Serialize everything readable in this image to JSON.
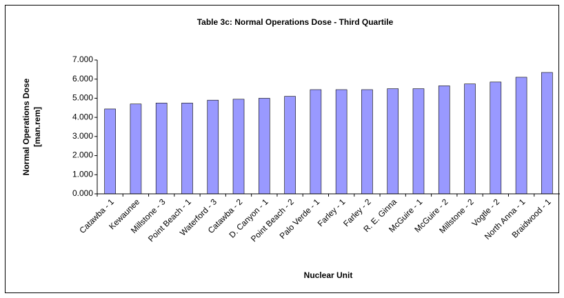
{
  "chart_data": {
    "type": "bar",
    "title": "Table 3c: Normal Operations Dose - Third Quartile",
    "y_label": [
      "Normal Operations Dose",
      "[man.rem]"
    ],
    "x_label": "Nuclear Unit",
    "categories": [
      "Catawba - 1",
      "Kewaunee",
      "Millstone - 3",
      "Point Beach - 1",
      "Waterford - 3",
      "Catawba - 2",
      "D. Canyon - 1",
      "Point Beach - 2",
      "Palo Verde - 1",
      "Farley - 1",
      "Farley - 2",
      "R. E. Ginna",
      "McGuire - 1",
      "McGuire - 2",
      "Millstone - 2",
      "Vogtle - 2",
      "North Anna - 1",
      "Braidwood - 1"
    ],
    "values": [
      4.44,
      4.7,
      4.75,
      4.75,
      4.9,
      4.95,
      5.0,
      5.1,
      5.45,
      5.45,
      5.45,
      5.5,
      5.5,
      5.65,
      5.75,
      5.85,
      6.1,
      6.35
    ],
    "color": "#9999ff",
    "ylim": [
      0,
      7
    ],
    "yticks": [
      {
        "value": 0,
        "label": "0.000"
      },
      {
        "value": 1,
        "label": "1.000"
      },
      {
        "value": 2,
        "label": "2.000"
      },
      {
        "value": 3,
        "label": "3.000"
      },
      {
        "value": 4,
        "label": "4.000"
      },
      {
        "value": 5,
        "label": "5.000"
      },
      {
        "value": 6,
        "label": "6.000"
      },
      {
        "value": 7,
        "label": "7.000"
      }
    ],
    "grid": false
  }
}
